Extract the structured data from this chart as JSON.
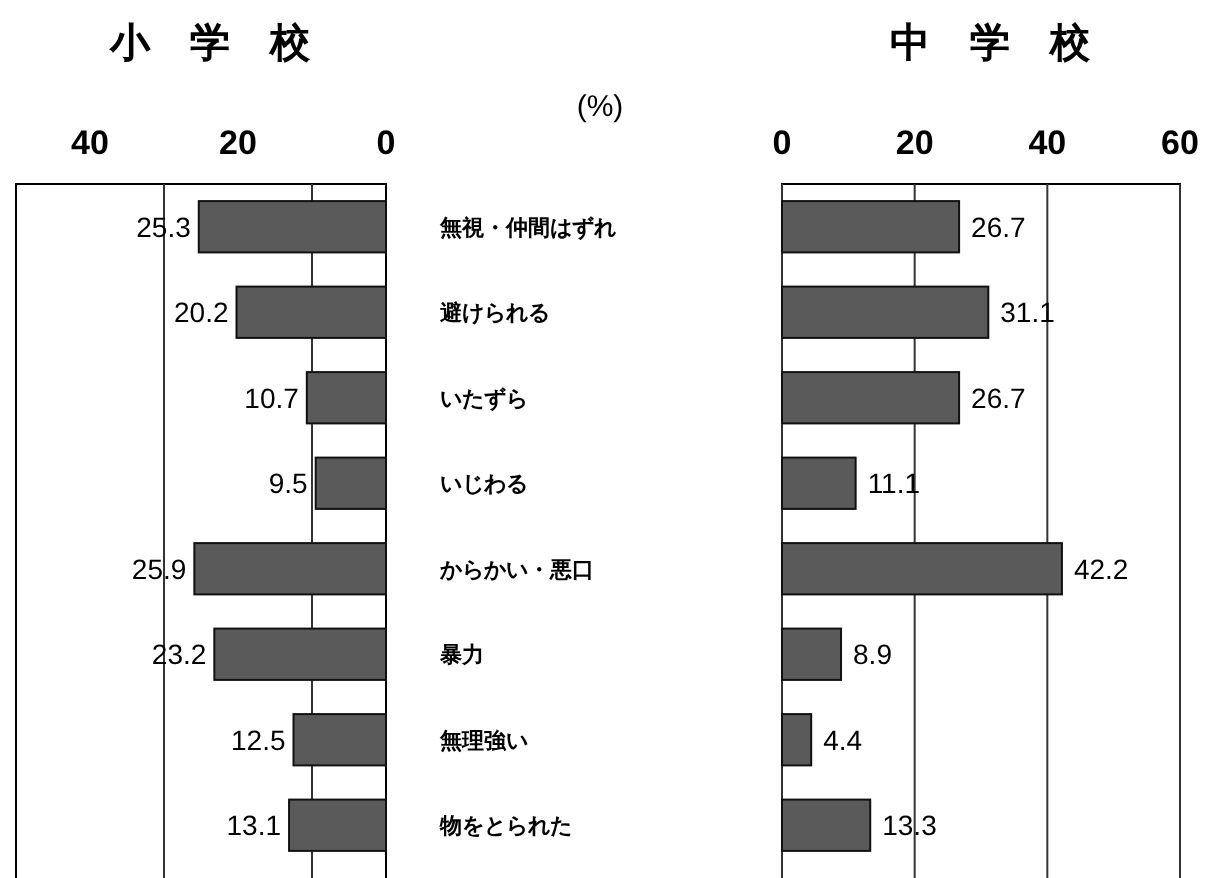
{
  "chart_data": [
    {
      "type": "bar",
      "orientation": "horizontal",
      "title": "小　学　校",
      "annotations": [
        "(%)"
      ],
      "categories": [
        "無視・仲間はずれ",
        "避けられる",
        "いたずら",
        "いじわる",
        "からかい・悪口",
        "暴力",
        "無理強い",
        "物をとられた"
      ],
      "values": [
        25.3,
        20.2,
        10.7,
        9.5,
        25.9,
        23.2,
        12.5,
        13.1
      ],
      "color": "#5a5a5a",
      "data_labels": true,
      "xlim": [
        50,
        0
      ],
      "xticks": [
        40,
        20,
        0
      ],
      "ref_lines": [
        {
          "axis": "x",
          "value": 10,
          "color": "#333333"
        },
        {
          "axis": "x",
          "value": 30,
          "color": "#333333"
        }
      ]
    },
    {
      "type": "bar",
      "orientation": "horizontal",
      "title": "中　学　校",
      "categories": [
        null,
        null,
        null,
        null,
        null,
        null,
        null,
        null
      ],
      "values": [
        26.7,
        31.1,
        26.7,
        11.1,
        42.2,
        8.9,
        4.4,
        13.3
      ],
      "color": "#5a5a5a",
      "data_labels": true,
      "xlim": [
        0,
        60
      ],
      "xticks": [
        0,
        20,
        40,
        60
      ],
      "grid": "x",
      "tick_labels": "x"
    }
  ]
}
